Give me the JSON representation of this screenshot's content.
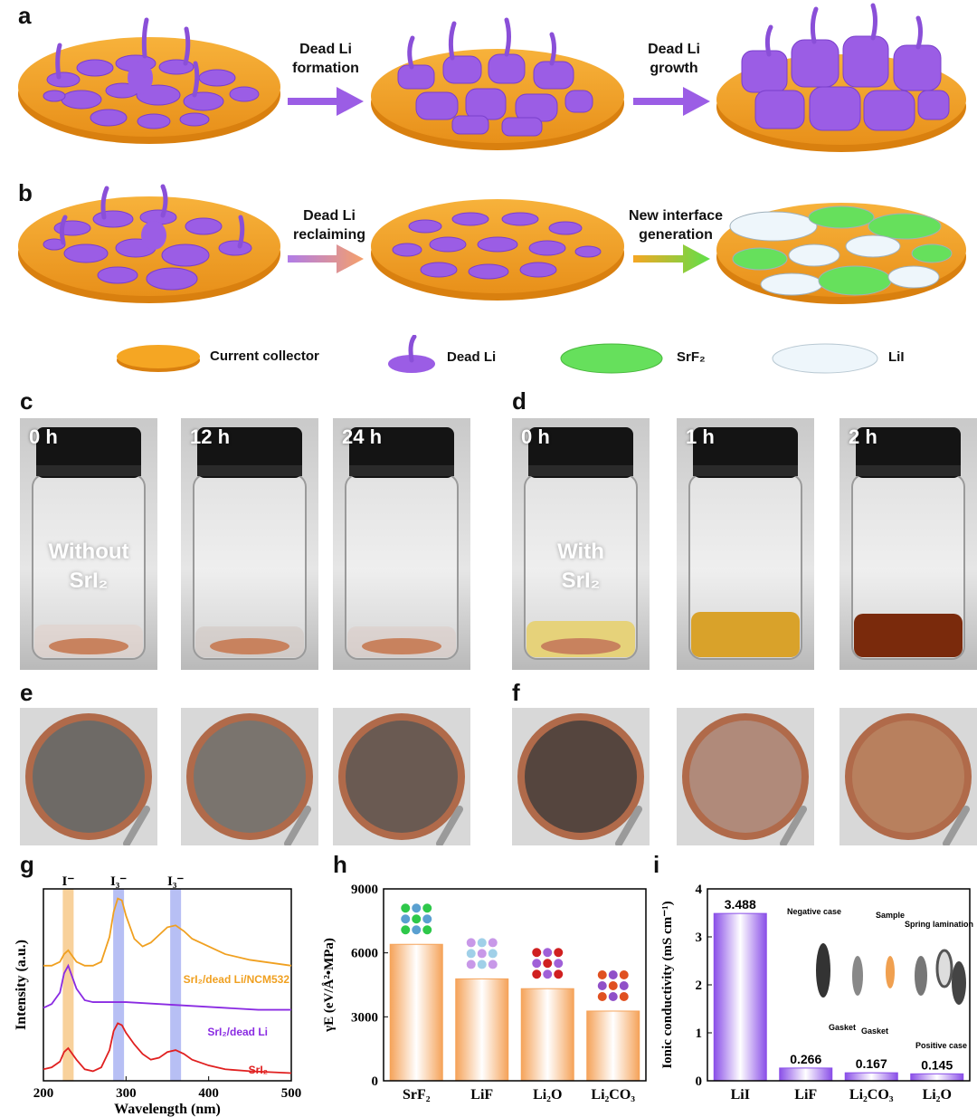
{
  "figure": {
    "panel_a": {
      "label": "a",
      "step1": "Dead Li formation",
      "step2": "Dead Li growth"
    },
    "panel_b": {
      "label": "b",
      "step1": "Dead Li reclaiming",
      "step2": "New interface generation"
    },
    "legend": {
      "current_collector": "Current collector",
      "dead_li": "Dead Li",
      "srf2": "SrF₂",
      "lii": "LiI"
    },
    "colors": {
      "collector": "#f5a623",
      "dead_li": "#9b5de5",
      "srf2": "#66e05c",
      "lii": "#e8f2f8",
      "arrow_a": "#9b5de5"
    },
    "panel_c": {
      "label": "c",
      "times": [
        "0 h",
        "12 h",
        "24 h"
      ],
      "overlay_line1": "Without",
      "overlay_line2": "SrI₂"
    },
    "panel_d": {
      "label": "d",
      "times": [
        "0 h",
        "1 h",
        "2 h"
      ],
      "overlay_line1": "With",
      "overlay_line2": "SrI₂"
    },
    "panel_e": {
      "label": "e"
    },
    "panel_f": {
      "label": "f"
    }
  },
  "chart_data": [
    {
      "panel": "g",
      "type": "line",
      "xlabel": "Wavelength (nm)",
      "ylabel": "Intensity (a.u.)",
      "xlim": [
        200,
        500
      ],
      "xticks": [
        "200",
        "300",
        "400",
        "500"
      ],
      "annotations": [
        "I⁻",
        "I₃⁻",
        "I₃⁻"
      ],
      "band_centers_nm": [
        230,
        291,
        360
      ],
      "series": [
        {
          "name": "SrI₂/dead Li/NCM532",
          "color": "#f0a020",
          "x": [
            200,
            210,
            220,
            225,
            230,
            240,
            250,
            260,
            270,
            280,
            285,
            290,
            295,
            300,
            310,
            320,
            330,
            340,
            350,
            360,
            370,
            380,
            400,
            420,
            450,
            500
          ],
          "y": [
            0.6,
            0.6,
            0.62,
            0.66,
            0.68,
            0.62,
            0.6,
            0.6,
            0.62,
            0.75,
            0.88,
            0.95,
            0.94,
            0.86,
            0.74,
            0.7,
            0.72,
            0.76,
            0.8,
            0.81,
            0.78,
            0.74,
            0.7,
            0.66,
            0.63,
            0.6
          ]
        },
        {
          "name": "SrI₂/dead Li",
          "color": "#8a2be2",
          "x": [
            200,
            210,
            220,
            225,
            230,
            240,
            250,
            260,
            280,
            300,
            340,
            380,
            420,
            460,
            500
          ],
          "y": [
            0.38,
            0.4,
            0.46,
            0.56,
            0.6,
            0.48,
            0.42,
            0.41,
            0.41,
            0.41,
            0.4,
            0.39,
            0.38,
            0.37,
            0.37
          ]
        },
        {
          "name": "SrI₂",
          "color": "#e02020",
          "x": [
            200,
            210,
            220,
            225,
            230,
            240,
            250,
            260,
            270,
            280,
            285,
            290,
            295,
            300,
            310,
            320,
            330,
            340,
            350,
            360,
            370,
            380,
            400,
            420,
            450,
            500
          ],
          "y": [
            0.06,
            0.07,
            0.1,
            0.15,
            0.17,
            0.11,
            0.06,
            0.05,
            0.07,
            0.16,
            0.26,
            0.3,
            0.29,
            0.25,
            0.19,
            0.14,
            0.11,
            0.12,
            0.15,
            0.16,
            0.14,
            0.11,
            0.08,
            0.06,
            0.05,
            0.04
          ]
        }
      ]
    },
    {
      "panel": "h",
      "type": "bar",
      "ylabel": "γE (eV/Å²•MPa)",
      "ylim": [
        0,
        9000
      ],
      "yticks": [
        "0",
        "3000",
        "6000",
        "9000"
      ],
      "categories": [
        "SrF₂",
        "LiF",
        "Li₂O",
        "Li₂CO₃"
      ],
      "values": [
        6400,
        4780,
        4320,
        3270
      ],
      "bar_color": "#f5a35a"
    },
    {
      "panel": "i",
      "type": "bar",
      "ylabel": "Ionic conductivity (mS cm⁻¹)",
      "ylim": [
        0,
        4
      ],
      "yticks": [
        "0",
        "1",
        "2",
        "3",
        "4"
      ],
      "categories": [
        "LiI",
        "LiF",
        "Li₂CO₃",
        "Li₂O"
      ],
      "values": [
        3.488,
        0.266,
        0.167,
        0.145
      ],
      "value_labels": [
        "3.488",
        "0.266",
        "0.167",
        "0.145"
      ],
      "bar_color": "#8a4fe8",
      "inset_labels": [
        "Negative case",
        "Sample",
        "Spring lamination",
        "Gasket",
        "Gasket",
        "Positive case"
      ]
    }
  ]
}
